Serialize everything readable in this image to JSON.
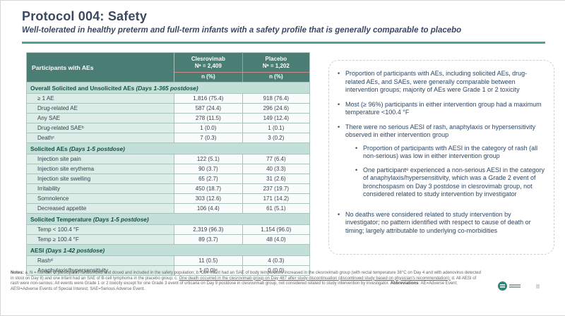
{
  "slide": {
    "title": "Protocol 004: Safety",
    "subtitle": "Well-tolerated in healthy preterm and full-term infants with a safety profile that is generally comparable to placebo"
  },
  "table": {
    "header": {
      "col1": "Participants with AEs",
      "clesrovimab": {
        "name": "Clesrovimab",
        "n": "Nᵃ = 2,409",
        "unit": "n (%)"
      },
      "placebo": {
        "name": "Placebo",
        "n": "Nᵃ = 1,202",
        "unit": "n (%)"
      }
    },
    "sections": [
      {
        "label": "Overall Solicited and Unsolicited AEs",
        "days": "(Days 1-365 postdose)",
        "rows": [
          {
            "label": "≥ 1 AE",
            "clesrovimab": "1,816 (75.4)",
            "placebo": "918 (76.4)"
          },
          {
            "label": "Drug-related AE",
            "clesrovimab": "587 (24.4)",
            "placebo": "296 (24.6)"
          },
          {
            "label": "Any SAE",
            "clesrovimab": "278 (11.5)",
            "placebo": "149 (12.4)"
          },
          {
            "label": "Drug-related SAEᵇ",
            "clesrovimab": "1 (0.0)",
            "placebo": "1 (0.1)"
          },
          {
            "label": "Deathᶜ",
            "clesrovimab": "7 (0.3)",
            "placebo": "3 (0.2)"
          }
        ]
      },
      {
        "label": "Solicited AEs",
        "days": "(Days 1-5 postdose)",
        "rows": [
          {
            "label": "Injection site pain",
            "clesrovimab": "122 (5.1)",
            "placebo": "77 (6.4)"
          },
          {
            "label": "Injection site erythema",
            "clesrovimab": "90 (3.7)",
            "placebo": "40 (3.3)"
          },
          {
            "label": "Injection site swelling",
            "clesrovimab": "65 (2.7)",
            "placebo": "31 (2.6)"
          },
          {
            "label": "Irritability",
            "clesrovimab": "450 (18.7)",
            "placebo": "237 (19.7)"
          },
          {
            "label": "Somnolence",
            "clesrovimab": "303 (12.6)",
            "placebo": "171 (14.2)"
          },
          {
            "label": "Decreased appetite",
            "clesrovimab": "106 (4.4)",
            "placebo": "61 (5.1)"
          }
        ]
      },
      {
        "label": "Solicited Temperature",
        "days": "(Days 1-5 postdose)",
        "rows": [
          {
            "label": "Temp < 100.4 °F",
            "clesrovimab": "2,319 (96.3)",
            "placebo": "1,154 (96.0)"
          },
          {
            "label": "Temp ≥ 100.4 °F",
            "clesrovimab": "89 (3.7)",
            "placebo": "48 (4.0)"
          }
        ]
      },
      {
        "label": "AESI",
        "days": "(Days 1-42 postdose)",
        "rows": [
          {
            "label": "Rashᵈ",
            "clesrovimab": "11 (0.5)",
            "placebo": "4 (0.3)"
          },
          {
            "label": "Anaphylaxis/hypersensitivity",
            "clesrovimab": "1 (0.0)ᵉ",
            "placebo": "0 (0.0)"
          }
        ]
      }
    ]
  },
  "bullets": [
    {
      "text": "Proportion of participants with AEs, including solicited AEs, drug-related AEs, and SAEs, were generally comparable between intervention groups; majority of AEs were Grade 1 or 2 toxicity",
      "subs": []
    },
    {
      "text": "Most (≥ 96%) participants in either intervention group had a maximum temperature <100.4 °F",
      "subs": []
    },
    {
      "text": "There were no serious AESI of rash, anaphylaxis or hypersensitivity observed in either intervention group",
      "subs": [
        "Proportion of participants with AESI in the category of rash (all non-serious) was low in either intervention group",
        "One participantᵉ experienced a non-serious AESI in the category of anaphylaxis/hypersensitivity, which was a Grade 2 event of bronchospasm on Day 3 postdose in clesrovimab group, not considered related to study intervention by investigator"
      ]
    },
    {
      "text": "No deaths were considered related to study intervention by investigator; no pattern identified with respect to cause of death or timing; largely attributable to underlying co-morbidities",
      "subs": []
    }
  ],
  "notes_segments": [
    {
      "text": "Notes:",
      "bold": true,
      "red": false
    },
    {
      "text": " a. N = number of participants randomized and dosed and included in the safety population; b. One infant had an SAE of body temperature increased in the clesrovimab group (with rectal temperature 38°C on Day 4 and with adenovirus detected in stool on Day 8) and one infant had an SAE of B-cell lymphoma in the placebo group; c. ",
      "bold": false,
      "red": false
    },
    {
      "text": "One death occurred in the clesrovimab group on Day 487 after study discontinuation (discontinued study based on physician's recommendation);",
      "bold": false,
      "red": true
    },
    {
      "text": " d. All AESI of rash were non-serious; All events were Grade 1 or 2 toxicity except for one Grade 3 event of urticaria on Day 9 postdose in clesrovimab group, not considered related to study intervention by investigator. ",
      "bold": false,
      "red": false
    },
    {
      "text": "Abbreviations",
      "bold": true,
      "red": false
    },
    {
      "text": ": AE=Adverse Event; AESI=Adverse Events of Special Interest; SAE=Serious Adverse Event.",
      "bold": false,
      "red": false
    }
  ],
  "icons": {
    "bullet_marker": "•",
    "company_logo": "logo-icon"
  },
  "colors": {
    "header-teal": "#4a7d73",
    "section-teal": "#c2e0d7",
    "label-cell": "#dcece6",
    "value-cell": "#fafcfb",
    "rule-teal": "#55a093",
    "title-navy": "#3b4862",
    "bullet-navy": "#2e4763",
    "section-text": "#175045",
    "note-gray": "#656565",
    "note-red": "#e03a2f",
    "pink-line": "#cf8a85",
    "logo-teal": "#2e8578"
  }
}
